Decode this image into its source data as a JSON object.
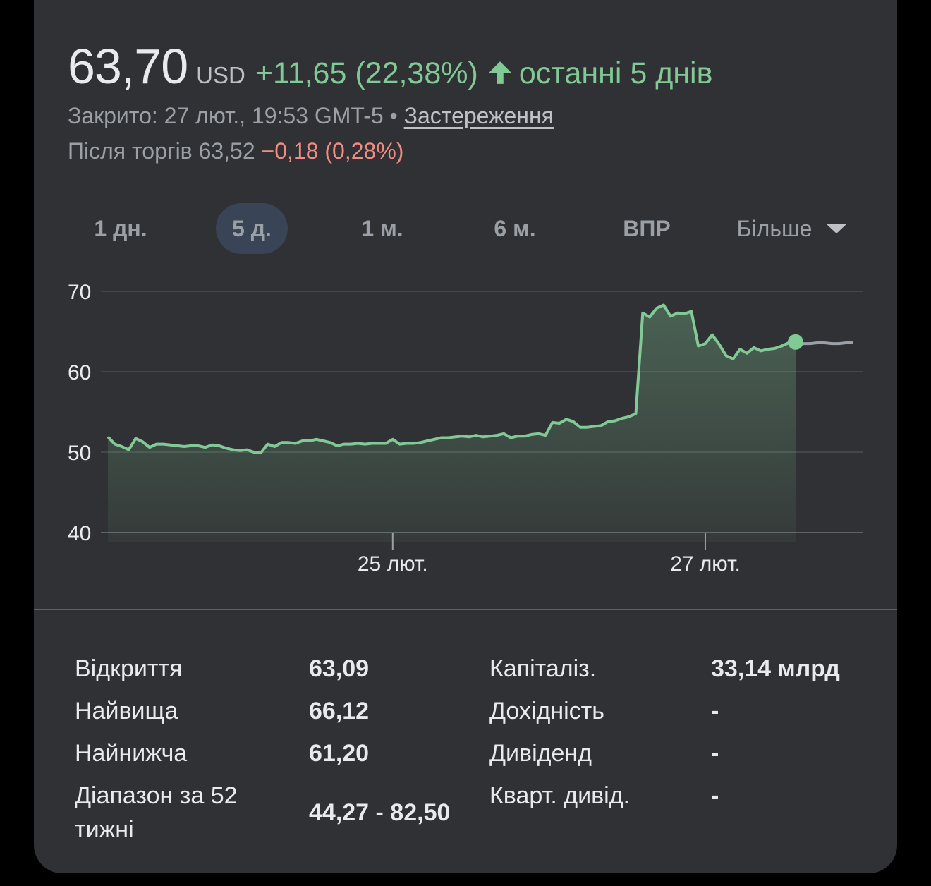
{
  "quote": {
    "price": "63,70",
    "currency": "USD",
    "change": "+11,65 (22,38%)",
    "period": "останні 5 днів",
    "closed_text": "Закрито: 27 лют., 19:53 GMT-5 • ",
    "disclaimer_link": "Застереження",
    "after_hours_label": "Після торгів 63,52 ",
    "after_hours_change": "−0,18 (0,28%)"
  },
  "colors": {
    "positive": "#81c995",
    "negative": "#f28b82",
    "card_bg": "#303134",
    "active_tab_bg": "#394457",
    "after_hours_line": "#9aa0a6"
  },
  "tabs": [
    {
      "label": "1 дн.",
      "active": false
    },
    {
      "label": "5 д.",
      "active": true
    },
    {
      "label": "1 м.",
      "active": false
    },
    {
      "label": "6 м.",
      "active": false
    },
    {
      "label": "ВПР",
      "active": false
    },
    {
      "label": "Більше",
      "active": false
    }
  ],
  "icons": {
    "arrow": "arrow-up-icon",
    "dropdown": "caret-down-icon"
  },
  "chart_data": {
    "type": "area",
    "ylim": [
      40,
      70
    ],
    "y_ticks": [
      "70",
      "60",
      "50",
      "40"
    ],
    "y_tick_values": [
      70,
      60,
      50,
      40
    ],
    "x_tick_labels": [
      "25 лют.",
      "27 лют."
    ],
    "x_tick_index": [
      41,
      86
    ],
    "grid": true,
    "series": [
      {
        "values": [
          51.9,
          51.0,
          50.7,
          50.3,
          51.7,
          51.3,
          50.6,
          51.0,
          51.0,
          50.9,
          50.8,
          50.7,
          50.8,
          50.8,
          50.6,
          50.9,
          50.8,
          50.5,
          50.3,
          50.2,
          50.3,
          50.0,
          49.9,
          51.0,
          50.7,
          51.2,
          51.2,
          51.1,
          51.4,
          51.4,
          51.6,
          51.4,
          51.2,
          50.8,
          51.0,
          51.0,
          51.1,
          51.0,
          51.1,
          51.1,
          51.1,
          51.6,
          51.0,
          51.1,
          51.1,
          51.2,
          51.4,
          51.6,
          51.8,
          51.8,
          51.9,
          52.0,
          51.9,
          52.1,
          51.9,
          52.0,
          52.1,
          52.3,
          51.8,
          52.0,
          52.0,
          52.2,
          52.3,
          52.1,
          53.7,
          53.6,
          54.1,
          53.8,
          53.1,
          53.1,
          53.2,
          53.3,
          53.8,
          53.9,
          54.2,
          54.4,
          54.8,
          67.3,
          66.8,
          67.9,
          68.3,
          66.9,
          67.3,
          67.2,
          67.5,
          63.2,
          63.5,
          64.6,
          63.4,
          62.0,
          61.6,
          62.8,
          62.3,
          63.0,
          62.6,
          62.8,
          62.9,
          63.2,
          63.6,
          63.7
        ]
      },
      {
        "values": [
          63.7,
          63.5,
          63.5,
          63.6,
          63.6,
          63.5,
          63.5,
          63.6,
          63.6
        ]
      }
    ]
  },
  "stats": {
    "left": [
      {
        "label": "Відкриття",
        "value": "63,09"
      },
      {
        "label": "Найвища",
        "value": "66,12"
      },
      {
        "label": "Найнижча",
        "value": "61,20"
      },
      {
        "label_line1": "Діапазон за 52",
        "label_line2": "тижні",
        "value": "44,27 - 82,50"
      }
    ],
    "right": [
      {
        "label": "Капіталіз.",
        "value": "33,14 млрд"
      },
      {
        "label": "Дохідність",
        "value": "-"
      },
      {
        "label": "Дивіденд",
        "value": "-"
      },
      {
        "label": "Кварт. дивід.",
        "value": "-"
      }
    ]
  }
}
